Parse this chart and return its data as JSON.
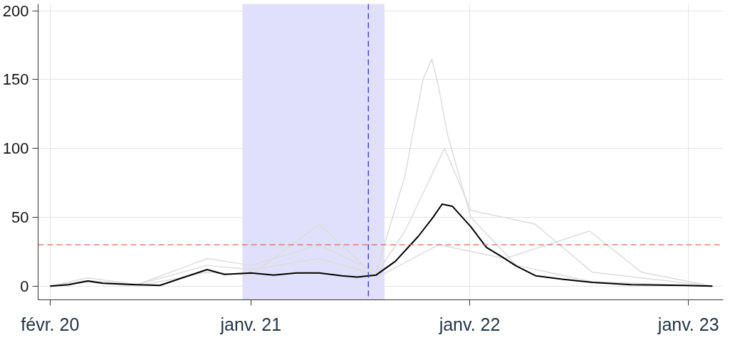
{
  "chart_data": {
    "type": "line",
    "xlim": [
      "2020-01-12",
      "2023-02-28"
    ],
    "ylim": [
      -10,
      205
    ],
    "xticks": [
      {
        "value": "2020-02-01",
        "label": "févr. 20"
      },
      {
        "value": "2021-01-01",
        "label": "janv. 21"
      },
      {
        "value": "2022-01-01",
        "label": "janv. 22"
      },
      {
        "value": "2023-01-01",
        "label": "janv. 23"
      }
    ],
    "yticks": [
      0,
      50,
      100,
      150,
      200
    ],
    "grid": true,
    "series": [
      {
        "color": "#dcdcdc",
        "x": [
          "2020-02-01",
          "2020-04-04",
          "2020-06-25",
          "2020-10-20",
          "2021-01-01",
          "2021-04-25",
          "2021-07-29",
          "2021-09-15",
          "2021-10-15",
          "2021-10-30",
          "2021-11-10",
          "2021-11-25",
          "2022-01-03",
          "2022-03-20",
          "2022-07-25",
          "2023-02-10"
        ],
        "values": [
          0,
          6,
          1,
          20,
          15,
          30,
          10,
          80,
          150,
          165,
          145,
          110,
          50,
          15,
          3,
          0
        ]
      },
      {
        "color": "#dcdcdc",
        "x": [
          "2020-02-01",
          "2020-04-04",
          "2020-06-25",
          "2020-10-20",
          "2021-01-01",
          "2021-04-25",
          "2021-07-29",
          "2021-09-15",
          "2021-11-20",
          "2022-01-03",
          "2022-04-20",
          "2022-07-25",
          "2023-02-10"
        ],
        "values": [
          0,
          4,
          1,
          15,
          12,
          20,
          8,
          40,
          100,
          55,
          45,
          10,
          0
        ]
      },
      {
        "color": "#dcdcdc",
        "x": [
          "2020-02-01",
          "2020-04-04",
          "2020-06-25",
          "2020-10-20",
          "2021-01-01",
          "2021-04-25",
          "2021-07-29",
          "2021-11-10",
          "2022-03-01",
          "2022-07-20",
          "2022-10-15",
          "2023-02-10"
        ],
        "values": [
          0,
          3,
          0,
          10,
          8,
          45,
          6,
          30,
          20,
          40,
          10,
          0
        ]
      },
      {
        "color": "#000000",
        "x": [
          "2020-02-01",
          "2020-03-03",
          "2020-04-04",
          "2020-04-29",
          "2020-06-25",
          "2020-08-02",
          "2020-09-09",
          "2020-10-20",
          "2020-11-18",
          "2021-01-01",
          "2021-02-08",
          "2021-03-18",
          "2021-04-25",
          "2021-06-02",
          "2021-06-27",
          "2021-07-29",
          "2021-08-30",
          "2021-10-07",
          "2021-11-01",
          "2021-11-16",
          "2021-12-03",
          "2022-01-03",
          "2022-01-29",
          "2022-02-23",
          "2022-03-20",
          "2022-04-21",
          "2022-06-04",
          "2022-07-25",
          "2022-09-27",
          "2022-12-24",
          "2023-02-10"
        ],
        "values": [
          0,
          1,
          3.7,
          2,
          1,
          0.5,
          6,
          12,
          8.5,
          9.5,
          8,
          9.5,
          9.5,
          7.5,
          6.5,
          8,
          18,
          36,
          50,
          59.5,
          58,
          43,
          28,
          21.5,
          14.5,
          7.5,
          5,
          2.7,
          1,
          0.5,
          0
        ]
      }
    ],
    "bands": [
      {
        "axis": "x",
        "from": "2020-12-18",
        "to": "2021-08-12",
        "color": "#e0e0fa"
      }
    ],
    "ref_lines": [
      {
        "axis": "x",
        "value": "2021-07-16",
        "color": "#3333cc",
        "line_style": "dashed"
      },
      {
        "axis": "y",
        "value": 30,
        "color": "#e06060",
        "line_style": "dashed"
      }
    ]
  }
}
